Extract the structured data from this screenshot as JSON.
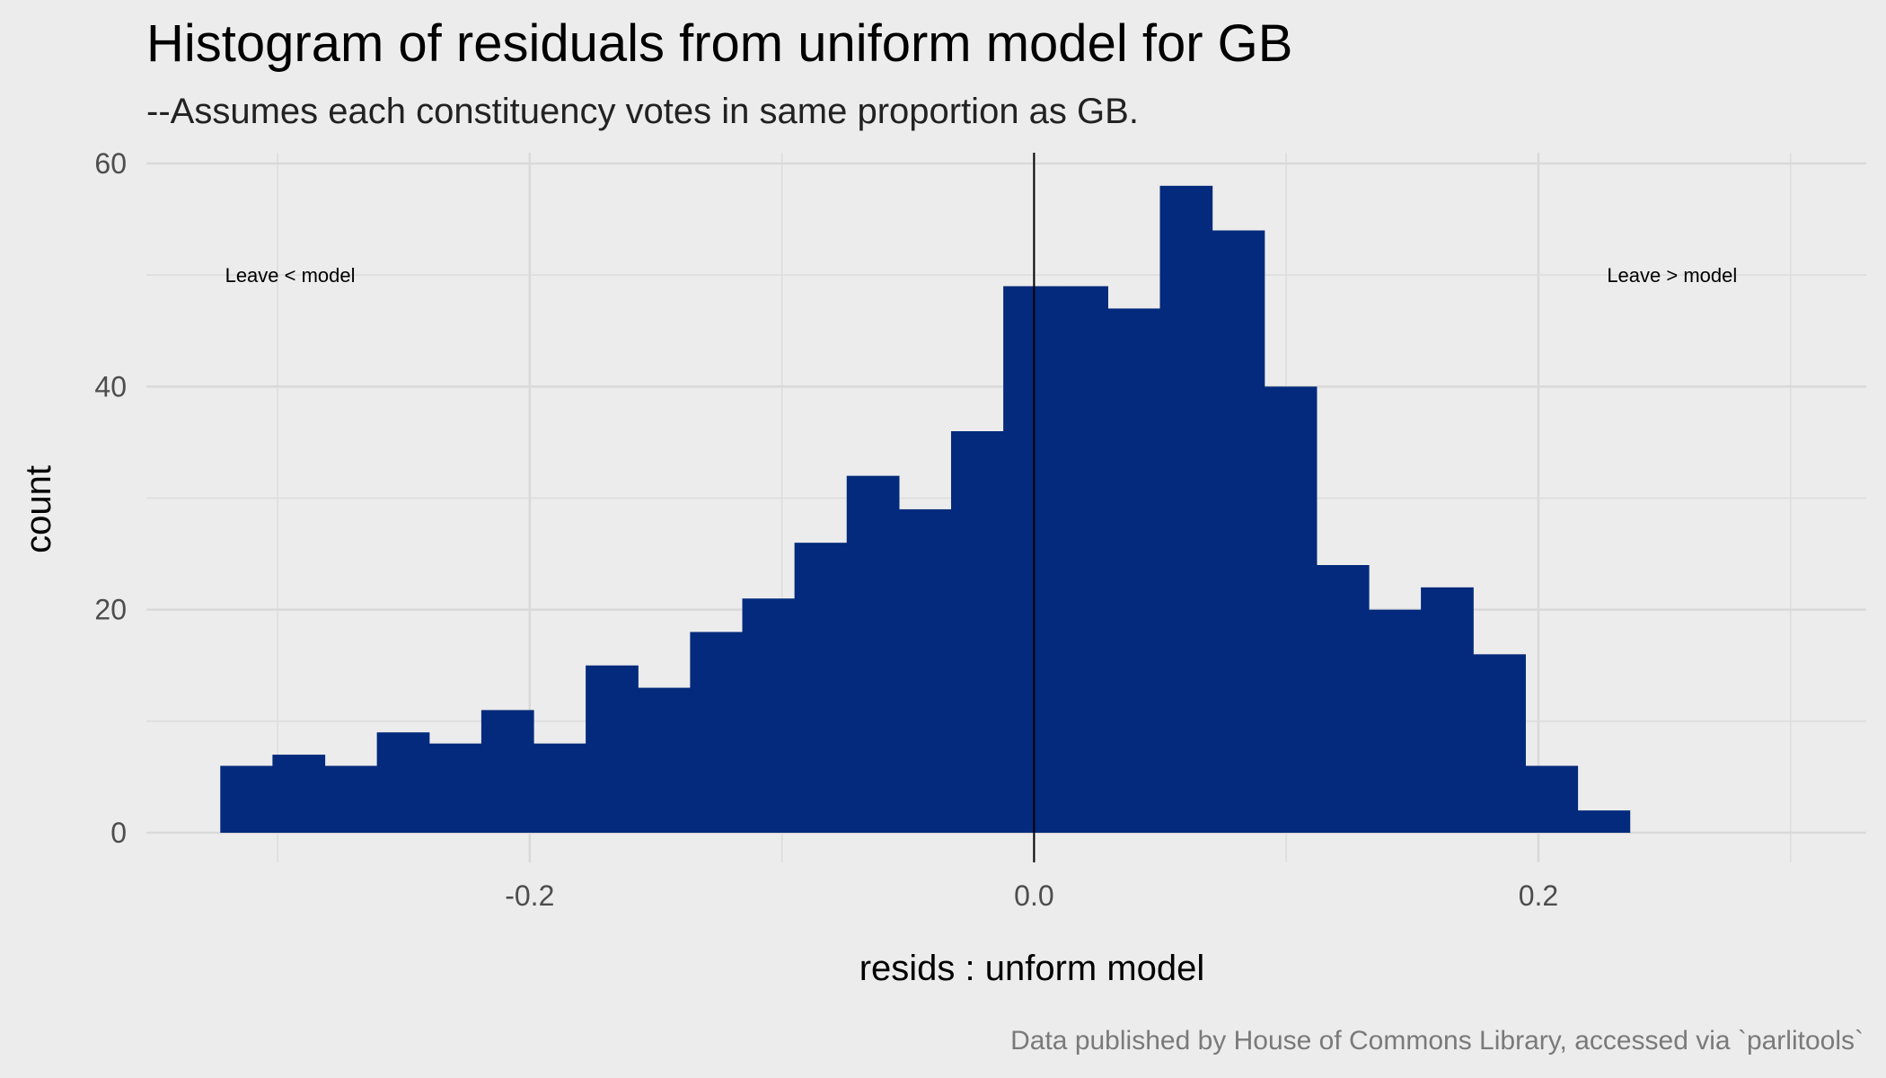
{
  "chart_data": {
    "type": "bar",
    "title": "Histogram of residuals from uniform model for GB",
    "subtitle": "--Assumes each constituency votes in same proportion as GB.",
    "xlabel": "resids : unform model",
    "ylabel": "count",
    "caption": "Data published by House of Commons Library, accessed via `parlitools`",
    "xlim": [
      -0.352,
      0.33
    ],
    "ylim": [
      0,
      60
    ],
    "x_ticks": [
      {
        "value": -0.2,
        "label": "-0.2"
      },
      {
        "value": 0.0,
        "label": "0.0"
      },
      {
        "value": 0.2,
        "label": "0.2"
      }
    ],
    "y_ticks": [
      {
        "value": 0,
        "label": "0"
      },
      {
        "value": 20,
        "label": "20"
      },
      {
        "value": 40,
        "label": "40"
      },
      {
        "value": 60,
        "label": "60"
      }
    ],
    "grid": true,
    "bar_color": "#032a7c",
    "bin_width": 0.0207,
    "bins_start": -0.3227,
    "values": [
      6,
      7,
      6,
      9,
      8,
      11,
      8,
      15,
      13,
      18,
      21,
      26,
      32,
      29,
      36,
      49,
      49,
      47,
      58,
      54,
      40,
      24,
      20,
      22,
      16,
      6,
      2
    ],
    "reference_line": {
      "x": 0.0,
      "color": "#000000"
    },
    "annotations": [
      {
        "text": "Leave < model",
        "x": -0.295,
        "y": 50
      },
      {
        "text": "Leave > model",
        "x": 0.253,
        "y": 50
      }
    ]
  }
}
